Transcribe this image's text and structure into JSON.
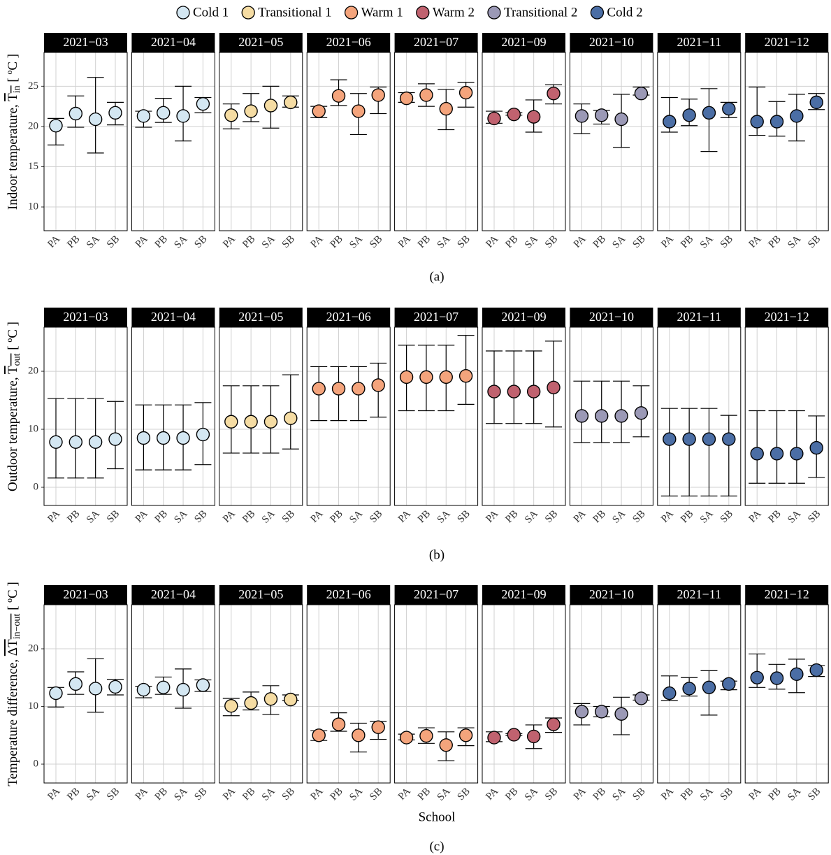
{
  "legend": [
    {
      "name": "Cold 1",
      "color": "#d4e7f2"
    },
    {
      "name": "Transitional 1",
      "color": "#f5dca3"
    },
    {
      "name": "Warm 1",
      "color": "#f4a47c"
    },
    {
      "name": "Warm 2",
      "color": "#c0626f"
    },
    {
      "name": "Transitional 2",
      "color": "#9b99b6"
    },
    {
      "name": "Cold 2",
      "color": "#4b6ea5"
    }
  ],
  "chart_data": [
    {
      "type": "errorbar",
      "caption": "(a)",
      "ylabel": {
        "text": "Indoor temperature, ",
        "symbol": "T",
        "sub": "in",
        "unit": " [ ºC ]"
      },
      "categories": [
        "PA",
        "PB",
        "SA",
        "SB"
      ],
      "ylim": [
        7.05,
        29.2
      ],
      "yticks": [
        10,
        15,
        20,
        25
      ],
      "grid": true,
      "facets": [
        {
          "title": "2021−03",
          "color": "#d4e7f2",
          "values": [
            20.1,
            21.6,
            20.9,
            21.7
          ],
          "lower": [
            17.7,
            19.9,
            16.7,
            20.2
          ],
          "upper": [
            21.0,
            23.8,
            26.1,
            23.0
          ]
        },
        {
          "title": "2021−04",
          "color": "#d4e7f2",
          "values": [
            21.3,
            21.7,
            21.3,
            22.8
          ],
          "lower": [
            19.9,
            20.5,
            18.2,
            21.7
          ],
          "upper": [
            21.9,
            23.5,
            25.0,
            23.6
          ]
        },
        {
          "title": "2021−05",
          "color": "#f5dca3",
          "values": [
            21.4,
            21.9,
            22.6,
            23.0
          ],
          "lower": [
            19.7,
            20.6,
            19.8,
            22.4
          ],
          "upper": [
            22.8,
            24.1,
            25.0,
            23.8
          ]
        },
        {
          "title": "2021−06",
          "color": "#f4a47c",
          "values": [
            21.9,
            23.8,
            21.9,
            23.9
          ],
          "lower": [
            21.1,
            22.6,
            19.0,
            21.6
          ],
          "upper": [
            22.5,
            25.8,
            24.1,
            24.9
          ]
        },
        {
          "title": "2021−07",
          "color": "#f4a47c",
          "values": [
            23.5,
            23.9,
            22.2,
            24.2
          ],
          "lower": [
            23.0,
            22.5,
            19.6,
            22.4
          ],
          "upper": [
            24.2,
            25.3,
            24.6,
            25.5
          ]
        },
        {
          "title": "2021−09",
          "color": "#c0626f",
          "values": [
            21.0,
            21.5,
            21.2,
            24.1
          ],
          "lower": [
            20.4,
            21.4,
            19.3,
            22.8
          ],
          "upper": [
            21.9,
            21.7,
            23.3,
            25.2
          ]
        },
        {
          "title": "2021−10",
          "color": "#9b99b6",
          "values": [
            21.3,
            21.4,
            20.9,
            24.1
          ],
          "lower": [
            19.1,
            20.3,
            17.4,
            23.9
          ],
          "upper": [
            22.8,
            22.0,
            24.0,
            24.9
          ]
        },
        {
          "title": "2021−11",
          "color": "#4b6ea5",
          "values": [
            20.6,
            21.4,
            21.7,
            22.2
          ],
          "lower": [
            19.3,
            20.1,
            16.9,
            21.1
          ],
          "upper": [
            23.6,
            23.4,
            24.7,
            23.0
          ]
        },
        {
          "title": "2021−12",
          "color": "#4b6ea5",
          "values": [
            20.6,
            20.6,
            21.3,
            23.0
          ],
          "lower": [
            18.9,
            18.8,
            18.2,
            22.1
          ],
          "upper": [
            24.9,
            23.1,
            24.0,
            24.1
          ]
        }
      ]
    },
    {
      "type": "errorbar",
      "caption": "(b)",
      "ylabel": {
        "text": "Outdoor temperature, ",
        "symbol": "T",
        "sub": "out",
        "unit": " [ ºC ]"
      },
      "categories": [
        "PA",
        "PB",
        "SA",
        "SB"
      ],
      "ylim": [
        -3.13,
        27.6
      ],
      "yticks": [
        0,
        10,
        20
      ],
      "grid": true,
      "facets": [
        {
          "title": "2021−03",
          "color": "#d4e7f2",
          "values": [
            7.8,
            7.8,
            7.8,
            8.3
          ],
          "lower": [
            1.6,
            1.6,
            1.6,
            3.2
          ],
          "upper": [
            15.3,
            15.3,
            15.3,
            14.8
          ]
        },
        {
          "title": "2021−04",
          "color": "#d4e7f2",
          "values": [
            8.5,
            8.5,
            8.5,
            9.1
          ],
          "lower": [
            3.0,
            3.0,
            3.0,
            3.9
          ],
          "upper": [
            14.2,
            14.2,
            14.2,
            14.6
          ]
        },
        {
          "title": "2021−05",
          "color": "#f5dca3",
          "values": [
            11.3,
            11.3,
            11.3,
            11.9
          ],
          "lower": [
            5.9,
            5.9,
            5.9,
            6.6
          ],
          "upper": [
            17.5,
            17.5,
            17.5,
            19.4
          ]
        },
        {
          "title": "2021−06",
          "color": "#f4a47c",
          "values": [
            17.0,
            17.0,
            17.0,
            17.6
          ],
          "lower": [
            11.5,
            11.5,
            11.5,
            12.1
          ],
          "upper": [
            20.8,
            20.8,
            20.8,
            21.4
          ]
        },
        {
          "title": "2021−07",
          "color": "#f4a47c",
          "values": [
            19.0,
            19.0,
            19.0,
            19.2
          ],
          "lower": [
            13.2,
            13.2,
            13.2,
            14.3
          ],
          "upper": [
            24.5,
            24.5,
            24.5,
            26.2
          ]
        },
        {
          "title": "2021−09",
          "color": "#c0626f",
          "values": [
            16.5,
            16.5,
            16.5,
            17.2
          ],
          "lower": [
            11.0,
            11.0,
            11.0,
            10.4
          ],
          "upper": [
            23.5,
            23.5,
            23.5,
            25.2
          ]
        },
        {
          "title": "2021−10",
          "color": "#9b99b6",
          "values": [
            12.3,
            12.3,
            12.3,
            12.8
          ],
          "lower": [
            7.7,
            7.7,
            7.7,
            8.7
          ],
          "upper": [
            18.3,
            18.3,
            18.3,
            17.5
          ]
        },
        {
          "title": "2021−11",
          "color": "#4b6ea5",
          "values": [
            8.3,
            8.3,
            8.3,
            8.3
          ],
          "lower": [
            -1.5,
            -1.5,
            -1.5,
            -1.5
          ],
          "upper": [
            13.6,
            13.6,
            13.6,
            12.4
          ]
        },
        {
          "title": "2021−12",
          "color": "#4b6ea5",
          "values": [
            5.8,
            5.8,
            5.8,
            6.8
          ],
          "lower": [
            0.7,
            0.7,
            0.7,
            1.7
          ],
          "upper": [
            13.2,
            13.2,
            13.2,
            12.3
          ]
        }
      ]
    },
    {
      "type": "errorbar",
      "caption": "(c)",
      "xlabel": "School",
      "ylabel": {
        "text": "Temperature difference, ",
        "symbol": "ΔT",
        "sub": "in−out",
        "unit": " [ ºC ]"
      },
      "categories": [
        "PA",
        "PB",
        "SA",
        "SB"
      ],
      "ylim": [
        -3.27,
        27.64
      ],
      "yticks": [
        0,
        10,
        20
      ],
      "grid": true,
      "facets": [
        {
          "title": "2021−03",
          "color": "#d4e7f2",
          "values": [
            12.3,
            13.9,
            13.1,
            13.4
          ],
          "lower": [
            9.9,
            12.1,
            9.0,
            12.0
          ],
          "upper": [
            13.3,
            16.0,
            18.3,
            14.7
          ]
        },
        {
          "title": "2021−04",
          "color": "#d4e7f2",
          "values": [
            12.9,
            13.3,
            12.9,
            13.7
          ],
          "lower": [
            11.5,
            12.1,
            9.7,
            12.6
          ],
          "upper": [
            13.5,
            15.1,
            16.5,
            14.6
          ]
        },
        {
          "title": "2021−05",
          "color": "#f5dca3",
          "values": [
            10.1,
            10.6,
            11.3,
            11.2
          ],
          "lower": [
            8.4,
            9.4,
            8.6,
            11.0
          ],
          "upper": [
            11.4,
            12.5,
            13.6,
            12.0
          ]
        },
        {
          "title": "2021−06",
          "color": "#f4a47c",
          "values": [
            5.0,
            6.9,
            5.0,
            6.4
          ],
          "lower": [
            4.1,
            5.7,
            2.1,
            4.3
          ],
          "upper": [
            5.8,
            8.9,
            7.1,
            7.4
          ]
        },
        {
          "title": "2021−07",
          "color": "#f4a47c",
          "values": [
            4.6,
            4.9,
            3.3,
            5.0
          ],
          "lower": [
            4.2,
            3.6,
            0.6,
            3.2
          ],
          "upper": [
            5.2,
            6.3,
            5.6,
            6.3
          ]
        },
        {
          "title": "2021−09",
          "color": "#c0626f",
          "values": [
            4.6,
            5.1,
            4.8,
            6.9
          ],
          "lower": [
            3.9,
            5.0,
            2.7,
            5.5
          ],
          "upper": [
            5.6,
            5.3,
            6.8,
            8.0
          ]
        },
        {
          "title": "2021−10",
          "color": "#9b99b6",
          "values": [
            9.1,
            9.1,
            8.7,
            11.4
          ],
          "lower": [
            6.8,
            8.2,
            5.1,
            11.1
          ],
          "upper": [
            10.5,
            10.0,
            11.6,
            12.0
          ]
        },
        {
          "title": "2021−11",
          "color": "#4b6ea5",
          "values": [
            12.3,
            13.1,
            13.3,
            13.9
          ],
          "lower": [
            11.0,
            11.8,
            8.5,
            12.9
          ],
          "upper": [
            15.3,
            15.0,
            16.2,
            14.4
          ]
        },
        {
          "title": "2021−12",
          "color": "#4b6ea5",
          "values": [
            15.0,
            14.9,
            15.6,
            16.3
          ],
          "lower": [
            13.3,
            13.0,
            12.4,
            15.2
          ],
          "upper": [
            19.1,
            17.3,
            18.2,
            17.1
          ]
        }
      ]
    }
  ]
}
